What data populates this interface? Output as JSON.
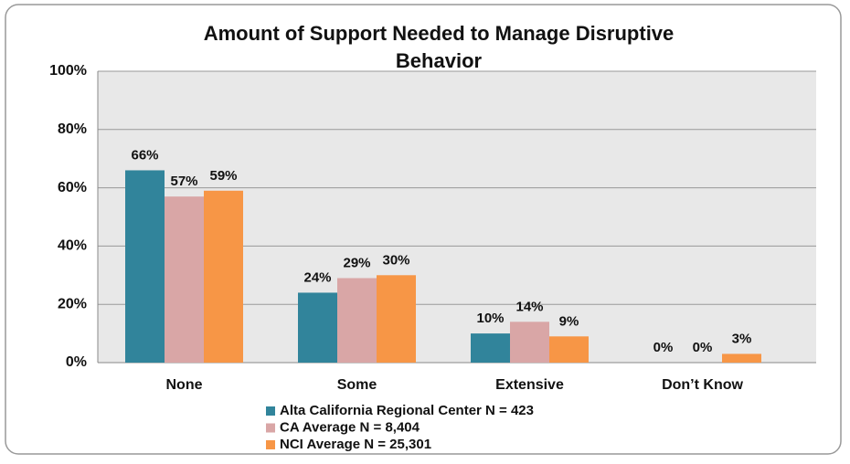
{
  "chart_data": {
    "type": "bar",
    "title": "Amount of Support Needed to Manage Disruptive Behavior",
    "categories": [
      "None",
      "Some",
      "Extensive",
      "Don’t Know"
    ],
    "series": [
      {
        "name": "Alta California Regional Center N = 423",
        "color": "#31849b",
        "values": [
          66,
          24,
          10,
          0
        ],
        "value_labels": [
          "66%",
          "24%",
          "10%",
          "0%"
        ]
      },
      {
        "name": "CA Average N = 8,404",
        "color": "#d9a6a6",
        "values": [
          57,
          29,
          14,
          0
        ],
        "value_labels": [
          "57%",
          "29%",
          "14%",
          "0%"
        ]
      },
      {
        "name": "NCI Average N = 25,301",
        "color": "#f79646",
        "values": [
          59,
          30,
          9,
          3
        ],
        "value_labels": [
          "59%",
          "30%",
          "9%",
          "3%"
        ]
      }
    ],
    "ylim": [
      0,
      100
    ],
    "yticks": [
      {
        "value": 0,
        "label": "0%"
      },
      {
        "value": 20,
        "label": "20%"
      },
      {
        "value": 40,
        "label": "40%"
      },
      {
        "value": 60,
        "label": "60%"
      },
      {
        "value": 80,
        "label": "80%"
      },
      {
        "value": 100,
        "label": "100%"
      }
    ],
    "grid": true
  }
}
